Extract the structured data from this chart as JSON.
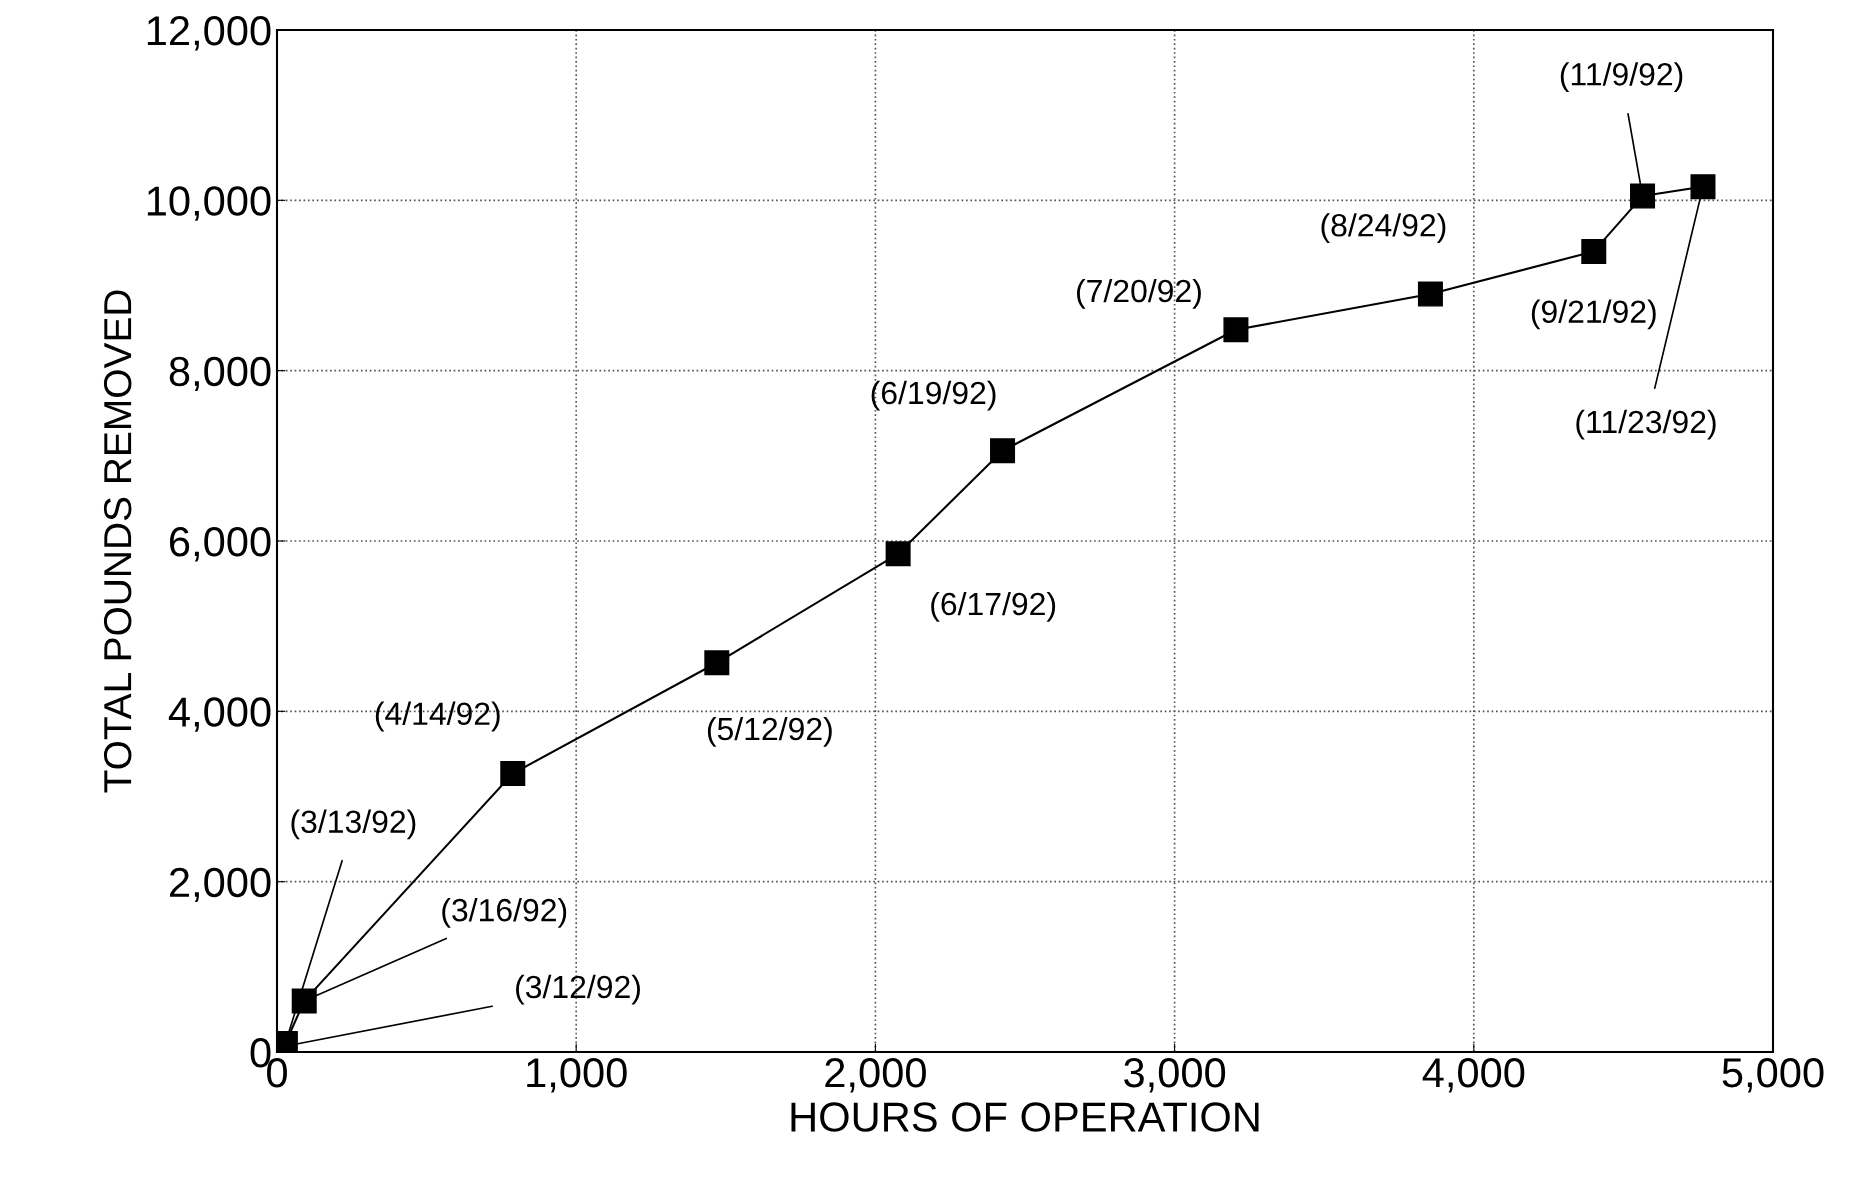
{
  "chart_data": {
    "type": "line",
    "xlabel": "HOURS OF OPERATION",
    "ylabel": "TOTAL POUNDS REMOVED",
    "x": [
      0,
      28,
      91,
      788,
      1470,
      2076,
      2425,
      3205,
      3855,
      4401,
      4564,
      4766
    ],
    "series": [
      {
        "color": "#000000",
        "values": [
          50,
          100,
          600,
          3270,
          4570,
          5850,
          7060,
          8480,
          8900,
          9400,
          10050,
          10160
        ]
      }
    ],
    "xlim": [
      0,
      5000
    ],
    "xticks": [
      {
        "value": 0,
        "label": "0"
      },
      {
        "value": 1000,
        "label": "1,000"
      },
      {
        "value": 2000,
        "label": "2,000"
      },
      {
        "value": 3000,
        "label": "3,000"
      },
      {
        "value": 4000,
        "label": "4,000"
      },
      {
        "value": 5000,
        "label": "5,000"
      }
    ],
    "ylim": [
      0,
      12000
    ],
    "yticks": [
      {
        "value": 0,
        "label": "0"
      },
      {
        "value": 2000,
        "label": "2,000"
      },
      {
        "value": 4000,
        "label": "4,000"
      },
      {
        "value": 6000,
        "label": "6,000"
      },
      {
        "value": 8000,
        "label": "8,000"
      },
      {
        "value": 10000,
        "label": "10,000"
      },
      {
        "value": 12000,
        "label": "12,000"
      }
    ],
    "grid": true,
    "marker": "square",
    "line_style": "solid",
    "annotations": [
      {
        "text": "(3/12/92)",
        "x": 0,
        "y": 50
      },
      {
        "text": "(3/13/92)",
        "x": 28,
        "y": 100
      },
      {
        "text": "(3/16/92)",
        "x": 91,
        "y": 600
      },
      {
        "text": "(4/14/92)",
        "x": 788,
        "y": 3270
      },
      {
        "text": "(5/12/92)",
        "x": 1470,
        "y": 4570
      },
      {
        "text": "(6/17/92)",
        "x": 2076,
        "y": 5850
      },
      {
        "text": "(6/19/92)",
        "x": 2425,
        "y": 7060
      },
      {
        "text": "(7/20/92)",
        "x": 3205,
        "y": 8480
      },
      {
        "text": "(8/24/92)",
        "x": 3855,
        "y": 8900
      },
      {
        "text": "(9/21/92)",
        "x": 4401,
        "y": 9400
      },
      {
        "text": "(11/9/92)",
        "x": 4564,
        "y": 10050
      },
      {
        "text": "(11/23/92)",
        "x": 4766,
        "y": 10160
      }
    ]
  }
}
